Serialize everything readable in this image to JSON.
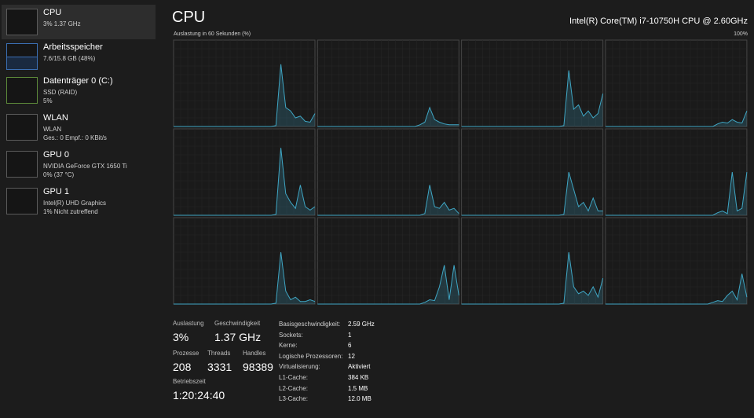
{
  "sidebar": {
    "items": [
      {
        "title": "CPU",
        "line1": "3%  1.37 GHz"
      },
      {
        "title": "Arbeitsspeicher",
        "line1": "7.6/15.8 GB (48%)"
      },
      {
        "title": "Datenträger 0 (C:)",
        "line1": "SSD (RAID)",
        "line2": "5%"
      },
      {
        "title": "WLAN",
        "line1": "WLAN",
        "line2": "Ges.: 0  Empf.: 0 KBit/s"
      },
      {
        "title": "GPU 0",
        "line1": "NVIDIA GeForce GTX 1650 Ti",
        "line2": "0%  (37 °C)"
      },
      {
        "title": "GPU 1",
        "line1": "Intel(R) UHD Graphics",
        "line2": "1%  Nicht zutreffend"
      }
    ]
  },
  "header": {
    "title": "CPU",
    "processor": "Intel(R) Core(TM) i7-10750H CPU @ 2.60GHz",
    "axis_label": "Auslastung in 60 Sekunden (%)",
    "max_label": "100%"
  },
  "cpu_graph": {
    "ylim": [
      0,
      100
    ],
    "color": "#3fa6c4",
    "cores": [
      [
        0,
        0,
        0,
        0,
        0,
        0,
        0,
        0,
        0,
        0,
        0,
        0,
        0,
        0,
        0,
        0,
        0,
        0,
        0,
        0,
        0,
        1,
        72,
        22,
        18,
        10,
        12,
        6,
        5,
        15
      ],
      [
        0,
        0,
        0,
        0,
        0,
        0,
        0,
        0,
        0,
        0,
        0,
        0,
        0,
        0,
        0,
        0,
        0,
        0,
        0,
        0,
        0,
        2,
        5,
        22,
        8,
        5,
        3,
        2,
        2,
        2
      ],
      [
        0,
        0,
        0,
        0,
        0,
        0,
        0,
        0,
        0,
        0,
        0,
        0,
        0,
        0,
        0,
        0,
        0,
        0,
        0,
        0,
        0,
        1,
        65,
        20,
        25,
        12,
        18,
        10,
        15,
        38
      ],
      [
        0,
        0,
        0,
        0,
        0,
        0,
        0,
        0,
        0,
        0,
        0,
        0,
        0,
        0,
        0,
        0,
        0,
        0,
        0,
        0,
        0,
        0,
        0,
        3,
        5,
        4,
        8,
        5,
        4,
        18
      ],
      [
        0,
        0,
        0,
        0,
        0,
        0,
        0,
        0,
        0,
        0,
        0,
        0,
        0,
        0,
        0,
        0,
        0,
        0,
        0,
        0,
        0,
        1,
        78,
        25,
        15,
        8,
        35,
        10,
        6,
        10
      ],
      [
        0,
        0,
        0,
        0,
        0,
        0,
        0,
        0,
        0,
        0,
        0,
        0,
        0,
        0,
        0,
        0,
        0,
        0,
        0,
        0,
        0,
        0,
        2,
        35,
        10,
        8,
        15,
        6,
        8,
        2
      ],
      [
        0,
        0,
        0,
        0,
        0,
        0,
        0,
        0,
        0,
        0,
        0,
        0,
        0,
        0,
        0,
        0,
        0,
        0,
        0,
        0,
        0,
        1,
        50,
        30,
        10,
        15,
        5,
        20,
        5,
        5
      ],
      [
        0,
        0,
        0,
        0,
        0,
        0,
        0,
        0,
        0,
        0,
        0,
        0,
        0,
        0,
        0,
        0,
        0,
        0,
        0,
        0,
        0,
        0,
        0,
        3,
        5,
        2,
        50,
        5,
        8,
        50
      ],
      [
        0,
        0,
        0,
        0,
        0,
        0,
        0,
        0,
        0,
        0,
        0,
        0,
        0,
        0,
        0,
        0,
        0,
        0,
        0,
        0,
        0,
        1,
        60,
        15,
        5,
        8,
        3,
        3,
        5,
        3
      ],
      [
        0,
        0,
        0,
        0,
        0,
        0,
        0,
        0,
        0,
        0,
        0,
        0,
        0,
        0,
        0,
        0,
        0,
        0,
        0,
        0,
        0,
        0,
        2,
        5,
        4,
        20,
        45,
        5,
        45,
        10
      ],
      [
        0,
        0,
        0,
        0,
        0,
        0,
        0,
        0,
        0,
        0,
        0,
        0,
        0,
        0,
        0,
        0,
        0,
        0,
        0,
        0,
        0,
        1,
        60,
        20,
        12,
        15,
        10,
        20,
        8,
        30
      ],
      [
        0,
        0,
        0,
        0,
        0,
        0,
        0,
        0,
        0,
        0,
        0,
        0,
        0,
        0,
        0,
        0,
        0,
        0,
        0,
        0,
        0,
        0,
        2,
        4,
        3,
        10,
        15,
        5,
        35,
        8
      ]
    ]
  },
  "stats": [
    {
      "label": "Auslastung",
      "value": "3%"
    },
    {
      "label": "Geschwindigkeit",
      "value": "1.37 GHz"
    },
    {
      "label": "Prozesse",
      "value": "208"
    },
    {
      "label": "Threads",
      "value": "3331"
    },
    {
      "label": "Handles",
      "value": "98389"
    },
    {
      "label": "Betriebszeit",
      "value": "1:20:24:40"
    }
  ],
  "details": [
    [
      "Basisgeschwindigkeit:",
      "2.59 GHz"
    ],
    [
      "Sockets:",
      "1"
    ],
    [
      "Kerne:",
      "6"
    ],
    [
      "Logische Prozessoren:",
      "12"
    ],
    [
      "Virtualisierung:",
      "Aktiviert"
    ],
    [
      "L1-Cache:",
      "384 KB"
    ],
    [
      "L2-Cache:",
      "1.5 MB"
    ],
    [
      "L3-Cache:",
      "12.0 MB"
    ]
  ]
}
